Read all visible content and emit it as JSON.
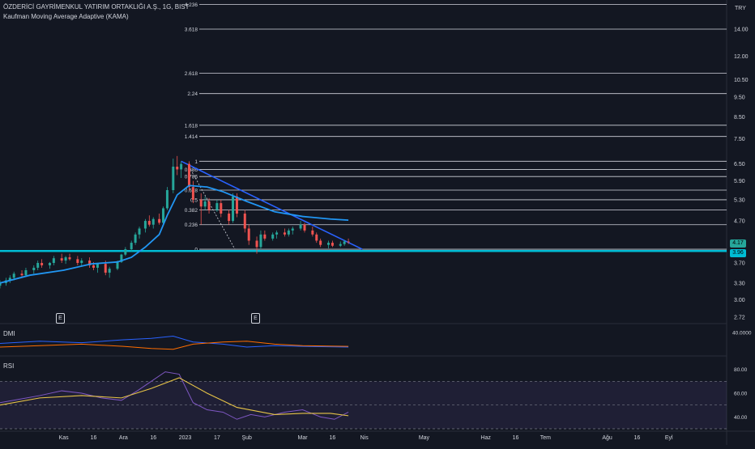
{
  "header": {
    "title": "ÖZDERİCİ GAYRİMENKUL YATIRIM ORTAKLIĞI A.Ş., 1G, BIST",
    "indicator": "Kaufman Moving Average Adaptive (KAMA)",
    "currency": "TRY"
  },
  "panes": {
    "dmi_label": "DMI",
    "rsi_label": "RSI"
  },
  "earnings_marker": "E",
  "price_tags": {
    "last": "4.17",
    "level": "3.96"
  },
  "colors": {
    "background": "#131722",
    "up": "#26a69a",
    "down": "#ef5350",
    "kama": "#2196f3",
    "trendline": "#2962ff",
    "support": "#00bcd4",
    "fib": "#d1d4dc",
    "dmi_plus": "#2962ff",
    "dmi_minus": "#ff6d00",
    "rsi": "#7e57c2",
    "rsi_ma": "#e8c547"
  },
  "chart_data": {
    "type": "candlestick",
    "price_scale": "log",
    "price_axis_ticks": [
      "14.00",
      "12.00",
      "10.50",
      "9.50",
      "8.50",
      "7.50",
      "6.50",
      "5.90",
      "5.30",
      "4.70",
      "4.17",
      "3.96",
      "3.70",
      "3.30",
      "3.00",
      "2.72"
    ],
    "fib_levels": [
      {
        "label": "4.236",
        "price": 16.1
      },
      {
        "label": "3.618",
        "price": 14.0
      },
      {
        "label": "2.618",
        "price": 10.9
      },
      {
        "label": "2.24",
        "price": 9.7
      },
      {
        "label": "1.618",
        "price": 8.1
      },
      {
        "label": "1.414",
        "price": 7.6
      },
      {
        "label": "1",
        "price": 6.6
      },
      {
        "label": "0.886",
        "price": 6.3
      },
      {
        "label": "0.786",
        "price": 6.05
      },
      {
        "label": "0.618",
        "price": 5.6
      },
      {
        "label": "0.5",
        "price": 5.3
      },
      {
        "label": "0.382",
        "price": 5.0
      },
      {
        "label": "0.236",
        "price": 4.6
      },
      {
        "label": "0",
        "price": 4.0
      }
    ],
    "support_price": 3.96,
    "trendline": [
      {
        "date": "2022-12-30",
        "price": 6.6
      },
      {
        "date": "2023-03-31",
        "price": 4.0
      }
    ],
    "dashed_line": [
      {
        "date": "2023-01-03",
        "price": 6.4
      },
      {
        "date": "2023-01-26",
        "price": 4.0
      }
    ],
    "kama": [
      [
        "2022-09-30",
        3.3
      ],
      [
        "2022-10-15",
        3.45
      ],
      [
        "2022-11-01",
        3.55
      ],
      [
        "2022-11-15",
        3.68
      ],
      [
        "2022-11-28",
        3.72
      ],
      [
        "2022-12-05",
        3.82
      ],
      [
        "2022-12-12",
        4.05
      ],
      [
        "2022-12-19",
        4.35
      ],
      [
        "2022-12-23",
        4.85
      ],
      [
        "2022-12-28",
        5.45
      ],
      [
        "2023-01-03",
        5.75
      ],
      [
        "2023-01-12",
        5.7
      ],
      [
        "2023-01-20",
        5.55
      ],
      [
        "2023-02-01",
        5.25
      ],
      [
        "2023-02-15",
        4.95
      ],
      [
        "2023-03-01",
        4.82
      ],
      [
        "2023-03-15",
        4.75
      ],
      [
        "2023-03-24",
        4.72
      ]
    ],
    "dmi": {
      "ylim": [
        10,
        50
      ],
      "tick": "40.0000",
      "plus_di": [
        [
          "2022-09-30",
          25
        ],
        [
          "2022-10-20",
          28
        ],
        [
          "2022-11-10",
          26
        ],
        [
          "2022-12-01",
          30
        ],
        [
          "2022-12-15",
          32
        ],
        [
          "2022-12-26",
          35
        ],
        [
          "2023-01-05",
          27
        ],
        [
          "2023-01-20",
          24
        ],
        [
          "2023-02-01",
          20
        ],
        [
          "2023-02-15",
          22
        ],
        [
          "2023-03-01",
          21
        ],
        [
          "2023-03-24",
          20
        ]
      ],
      "minus_di": [
        [
          "2022-09-30",
          20
        ],
        [
          "2022-10-20",
          22
        ],
        [
          "2022-11-10",
          24
        ],
        [
          "2022-12-01",
          21
        ],
        [
          "2022-12-15",
          18
        ],
        [
          "2022-12-26",
          17
        ],
        [
          "2023-01-05",
          24
        ],
        [
          "2023-01-20",
          27
        ],
        [
          "2023-02-01",
          28
        ],
        [
          "2023-02-15",
          24
        ],
        [
          "2023-03-01",
          22
        ],
        [
          "2023-03-24",
          21
        ]
      ]
    },
    "rsi": {
      "ylim": [
        30,
        90
      ],
      "ticks": [
        "80.00",
        "60.00",
        "40.00"
      ],
      "band_upper": 70,
      "band_lower": 30,
      "mid": 50,
      "rsi": [
        [
          "2022-09-30",
          52
        ],
        [
          "2022-10-10",
          55
        ],
        [
          "2022-10-20",
          58
        ],
        [
          "2022-10-31",
          62
        ],
        [
          "2022-11-10",
          60
        ],
        [
          "2022-11-20",
          56
        ],
        [
          "2022-11-30",
          54
        ],
        [
          "2022-12-08",
          62
        ],
        [
          "2022-12-15",
          70
        ],
        [
          "2022-12-22",
          78
        ],
        [
          "2022-12-29",
          76
        ],
        [
          "2023-01-05",
          52
        ],
        [
          "2023-01-12",
          46
        ],
        [
          "2023-01-20",
          44
        ],
        [
          "2023-01-27",
          38
        ],
        [
          "2023-02-03",
          42
        ],
        [
          "2023-02-10",
          40
        ],
        [
          "2023-02-20",
          44
        ],
        [
          "2023-03-01",
          46
        ],
        [
          "2023-03-10",
          40
        ],
        [
          "2023-03-17",
          38
        ],
        [
          "2023-03-24",
          44
        ]
      ],
      "rsi_ma": [
        [
          "2022-09-30",
          50
        ],
        [
          "2022-10-20",
          56
        ],
        [
          "2022-11-10",
          58
        ],
        [
          "2022-11-30",
          56
        ],
        [
          "2022-12-15",
          64
        ],
        [
          "2022-12-29",
          73
        ],
        [
          "2023-01-12",
          60
        ],
        [
          "2023-01-27",
          48
        ],
        [
          "2023-02-15",
          42
        ],
        [
          "2023-03-01",
          43
        ],
        [
          "2023-03-15",
          43
        ],
        [
          "2023-03-24",
          41
        ]
      ]
    },
    "candles": [
      [
        "2022-09-30",
        3.25,
        3.35,
        3.2,
        3.3
      ],
      [
        "2022-10-03",
        3.3,
        3.4,
        3.25,
        3.35
      ],
      [
        "2022-10-05",
        3.35,
        3.45,
        3.3,
        3.4
      ],
      [
        "2022-10-07",
        3.4,
        3.52,
        3.35,
        3.48
      ],
      [
        "2022-10-11",
        3.48,
        3.55,
        3.4,
        3.45
      ],
      [
        "2022-10-13",
        3.45,
        3.6,
        3.42,
        3.55
      ],
      [
        "2022-10-17",
        3.55,
        3.65,
        3.48,
        3.6
      ],
      [
        "2022-10-19",
        3.6,
        3.75,
        3.55,
        3.7
      ],
      [
        "2022-10-21",
        3.7,
        3.78,
        3.6,
        3.65
      ],
      [
        "2022-10-25",
        3.65,
        3.72,
        3.58,
        3.7
      ],
      [
        "2022-10-27",
        3.7,
        3.85,
        3.65,
        3.8
      ],
      [
        "2022-10-31",
        3.8,
        3.9,
        3.7,
        3.75
      ],
      [
        "2022-11-02",
        3.75,
        3.85,
        3.68,
        3.82
      ],
      [
        "2022-11-04",
        3.82,
        3.9,
        3.75,
        3.78
      ],
      [
        "2022-11-08",
        3.78,
        3.85,
        3.65,
        3.7
      ],
      [
        "2022-11-10",
        3.7,
        3.8,
        3.62,
        3.75
      ],
      [
        "2022-11-14",
        3.75,
        3.82,
        3.6,
        3.65
      ],
      [
        "2022-11-16",
        3.65,
        3.72,
        3.55,
        3.6
      ],
      [
        "2022-11-18",
        3.6,
        3.7,
        3.5,
        3.68
      ],
      [
        "2022-11-22",
        3.68,
        3.75,
        3.45,
        3.5
      ],
      [
        "2022-11-24",
        3.5,
        3.62,
        3.4,
        3.58
      ],
      [
        "2022-11-28",
        3.58,
        3.75,
        3.55,
        3.72
      ],
      [
        "2022-11-30",
        3.72,
        3.9,
        3.7,
        3.88
      ],
      [
        "2022-12-02",
        3.88,
        4.05,
        3.85,
        4.0
      ],
      [
        "2022-12-05",
        4.0,
        4.2,
        3.95,
        4.15
      ],
      [
        "2022-12-07",
        4.15,
        4.4,
        4.1,
        4.35
      ],
      [
        "2022-12-09",
        4.35,
        4.55,
        4.25,
        4.5
      ],
      [
        "2022-12-12",
        4.5,
        4.75,
        4.4,
        4.7
      ],
      [
        "2022-12-14",
        4.7,
        4.85,
        4.55,
        4.6
      ],
      [
        "2022-12-16",
        4.6,
        4.8,
        4.5,
        4.75
      ],
      [
        "2022-12-19",
        4.75,
        4.9,
        4.6,
        4.65
      ],
      [
        "2022-12-21",
        4.65,
        5.1,
        4.6,
        5.05
      ],
      [
        "2022-12-23",
        5.05,
        5.7,
        5.0,
        5.6
      ],
      [
        "2022-12-26",
        5.6,
        6.7,
        5.5,
        6.4
      ],
      [
        "2022-12-28",
        6.4,
        6.8,
        6.1,
        6.3
      ],
      [
        "2022-12-30",
        6.3,
        6.6,
        6.0,
        6.5
      ],
      [
        "2023-01-03",
        6.5,
        6.6,
        5.6,
        5.7
      ],
      [
        "2023-01-05",
        5.7,
        5.9,
        5.2,
        5.3
      ],
      [
        "2023-01-09",
        5.3,
        5.5,
        4.6,
        5.1
      ],
      [
        "2023-01-11",
        5.1,
        5.4,
        5.0,
        5.25
      ],
      [
        "2023-01-13",
        5.25,
        5.35,
        4.9,
        5.0
      ],
      [
        "2023-01-17",
        5.0,
        5.3,
        4.95,
        5.2
      ],
      [
        "2023-01-19",
        5.2,
        5.3,
        4.8,
        4.9
      ],
      [
        "2023-01-23",
        4.9,
        5.0,
        4.6,
        4.7
      ],
      [
        "2023-01-25",
        4.7,
        5.5,
        4.65,
        5.4
      ],
      [
        "2023-01-27",
        5.4,
        5.5,
        4.8,
        4.9
      ],
      [
        "2023-01-31",
        4.9,
        5.0,
        4.4,
        4.5
      ],
      [
        "2023-02-02",
        4.5,
        4.6,
        4.1,
        4.2
      ],
      [
        "2023-02-06",
        4.2,
        4.3,
        3.9,
        4.05
      ],
      [
        "2023-02-08",
        4.05,
        4.45,
        4.0,
        4.35
      ],
      [
        "2023-02-10",
        4.35,
        4.45,
        4.2,
        4.25
      ],
      [
        "2023-02-14",
        4.25,
        4.4,
        4.2,
        4.35
      ],
      [
        "2023-02-16",
        4.35,
        4.45,
        4.25,
        4.4
      ],
      [
        "2023-02-20",
        4.4,
        4.5,
        4.3,
        4.35
      ],
      [
        "2023-02-22",
        4.35,
        4.5,
        4.3,
        4.45
      ],
      [
        "2023-02-24",
        4.45,
        4.55,
        4.35,
        4.5
      ],
      [
        "2023-02-28",
        4.5,
        4.7,
        4.45,
        4.6
      ],
      [
        "2023-03-02",
        4.6,
        4.65,
        4.4,
        4.45
      ],
      [
        "2023-03-06",
        4.45,
        4.55,
        4.3,
        4.35
      ],
      [
        "2023-03-08",
        4.35,
        4.4,
        4.15,
        4.2
      ],
      [
        "2023-03-10",
        4.2,
        4.25,
        4.05,
        4.1
      ],
      [
        "2023-03-14",
        4.1,
        4.2,
        4.02,
        4.15
      ],
      [
        "2023-03-16",
        4.15,
        4.2,
        4.05,
        4.08
      ],
      [
        "2023-03-20",
        4.08,
        4.18,
        4.05,
        4.12
      ],
      [
        "2023-03-22",
        4.12,
        4.22,
        4.08,
        4.18
      ],
      [
        "2023-03-24",
        4.18,
        4.25,
        4.12,
        4.17
      ]
    ],
    "x_axis": {
      "start": "2022-09-30",
      "end": "2023-09-30",
      "ticks": [
        {
          "date": "2022-11-01",
          "label": "Kas"
        },
        {
          "date": "2022-11-16",
          "label": "16"
        },
        {
          "date": "2022-12-01",
          "label": "Ara"
        },
        {
          "date": "2022-12-16",
          "label": "16"
        },
        {
          "date": "2023-01-01",
          "label": "2023"
        },
        {
          "date": "2023-01-17",
          "label": "17"
        },
        {
          "date": "2023-02-01",
          "label": "Şub"
        },
        {
          "date": "2023-03-01",
          "label": "Mar"
        },
        {
          "date": "2023-03-16",
          "label": "16"
        },
        {
          "date": "2023-04-01",
          "label": "Nis"
        },
        {
          "date": "2023-05-01",
          "label": "May"
        },
        {
          "date": "2023-06-01",
          "label": "Haz"
        },
        {
          "date": "2023-06-16",
          "label": "16"
        },
        {
          "date": "2023-07-01",
          "label": "Tem"
        },
        {
          "date": "2023-08-01",
          "label": "Ağu"
        },
        {
          "date": "2023-08-16",
          "label": "16"
        },
        {
          "date": "2023-09-01",
          "label": "Eyl"
        }
      ]
    }
  }
}
